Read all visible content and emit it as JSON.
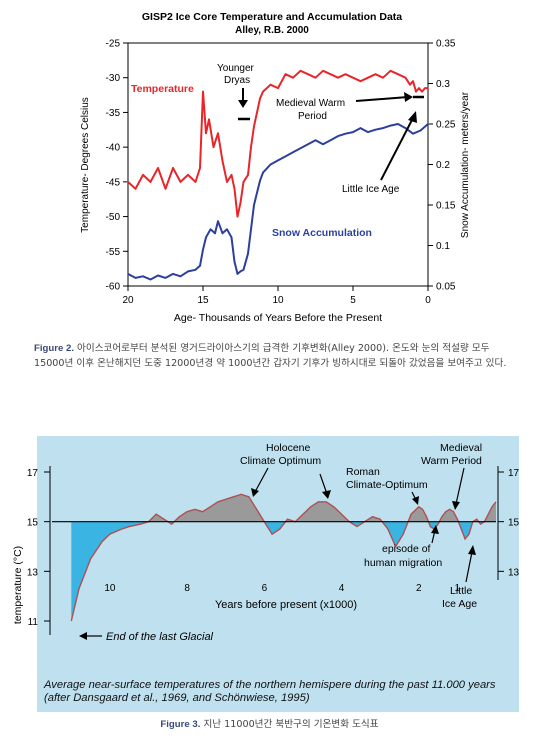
{
  "figure2": {
    "caption_label": "Figure 2.",
    "caption_text": "아이스코어로부터 분석된 영거드라이아스기의 급격한 기후변화(Alley 2000). 온도와 눈의 적설량 모두 15000년 이후 온난해지던 도중 12000년경 약 1000년간 갑자기 기후가 빙하시대로 되돌아 갔었음을 보여주고 있다.",
    "chart_data": {
      "type": "line",
      "title": "GISP2 Ice Core Temperature and Accumulation Data",
      "subtitle": "Alley, R.B. 2000",
      "xlabel": "Age- Thousands of Years Before the Present",
      "ylabel_left": "Temperature- Degrees Celsius",
      "ylabel_right": "Snow Accumulation- meters/year",
      "xlim": [
        20,
        0
      ],
      "ylim_left": [
        -60,
        -25
      ],
      "ylim_right": [
        0.05,
        0.35
      ],
      "x_ticks": [
        "20",
        "15",
        "10",
        "5",
        "0"
      ],
      "y_ticks_left": [
        "-25",
        "-30",
        "-35",
        "-40",
        "-45",
        "-50",
        "-55",
        "-60"
      ],
      "y_ticks_right": [
        "0.35",
        "0.3",
        "0.25",
        "0.2",
        "0.15",
        "0.1",
        "0.05"
      ],
      "series": [
        {
          "name": "Temperature",
          "color": "#e8262a",
          "axis": "left",
          "x": [
            20,
            19.5,
            19,
            18.5,
            18,
            17.5,
            17,
            16.5,
            16,
            15.5,
            15.2,
            15.0,
            14.8,
            14.6,
            14.3,
            14.0,
            13.7,
            13.4,
            13.1,
            12.9,
            12.7,
            12.5,
            12.3,
            12.0,
            11.8,
            11.6,
            11.4,
            11.2,
            11.0,
            10.5,
            10,
            9.5,
            9,
            8.5,
            8,
            7.5,
            7,
            6.5,
            6,
            5.5,
            5,
            4.5,
            4,
            3.5,
            3,
            2.5,
            2,
            1.5,
            1.2,
            1.0,
            0.8,
            0.6,
            0.4,
            0.2,
            0
          ],
          "values": [
            -45,
            -46,
            -44,
            -45,
            -43,
            -46,
            -43,
            -45,
            -44,
            -45,
            -43,
            -32,
            -38,
            -36,
            -40,
            -38,
            -42,
            -45,
            -44,
            -46,
            -50,
            -48,
            -45,
            -44,
            -40,
            -37,
            -35,
            -33,
            -32,
            -31,
            -31.5,
            -29.5,
            -30,
            -29,
            -29.5,
            -30,
            -29,
            -29.5,
            -30,
            -29.5,
            -30,
            -30.5,
            -30,
            -29.5,
            -30,
            -29,
            -29.5,
            -30,
            -31,
            -30.5,
            -32,
            -31.5,
            -32,
            -31.5,
            -31.5
          ]
        },
        {
          "name": "Snow Accumulation",
          "color": "#2d3f9e",
          "axis": "right",
          "x": [
            20,
            19.5,
            19,
            18.5,
            18,
            17.5,
            17,
            16.5,
            16,
            15.5,
            15.2,
            15.0,
            14.8,
            14.5,
            14.2,
            14.0,
            13.7,
            13.4,
            13.1,
            12.9,
            12.7,
            12.5,
            12.3,
            12.0,
            11.8,
            11.6,
            11.4,
            11.2,
            11.0,
            10.5,
            10,
            9.5,
            9,
            8.5,
            8,
            7.5,
            7,
            6.5,
            6,
            5.5,
            5,
            4.5,
            4,
            3.5,
            3,
            2.5,
            2,
            1.5,
            1.0,
            0.5,
            0
          ],
          "values": [
            0.065,
            0.06,
            0.062,
            0.058,
            0.063,
            0.06,
            0.065,
            0.062,
            0.068,
            0.07,
            0.075,
            0.095,
            0.11,
            0.12,
            0.115,
            0.13,
            0.115,
            0.12,
            0.11,
            0.08,
            0.065,
            0.068,
            0.07,
            0.09,
            0.12,
            0.15,
            0.165,
            0.18,
            0.19,
            0.2,
            0.205,
            0.21,
            0.215,
            0.22,
            0.225,
            0.23,
            0.225,
            0.23,
            0.235,
            0.238,
            0.24,
            0.245,
            0.24,
            0.243,
            0.245,
            0.248,
            0.25,
            0.245,
            0.238,
            0.242,
            0.25
          ]
        }
      ],
      "annotations": [
        "Younger Dryas",
        "Medieval Warm Period",
        "Little Ice Age"
      ],
      "series_labels": [
        "Temperature",
        "Snow Accumulation"
      ]
    }
  },
  "figure3": {
    "caption_label": "Figure 3.",
    "caption_text": "지난 11000년간 북반구의 기온변화 도식표",
    "note": "Average near-surface temperatures of the northern hemispere during the past 11.000 years (after Dansgaard et al., 1969, and Schönwiese, 1995)",
    "chart_data": {
      "type": "area",
      "xlabel": "Years before present (x1000)",
      "ylabel": "temperature (°C)",
      "xlim": [
        11.5,
        0
      ],
      "ylim": [
        10.5,
        17.3
      ],
      "baseline": 15,
      "x_ticks": [
        "10",
        "8",
        "6",
        "4",
        "2",
        "1"
      ],
      "y_ticks": [
        "17",
        "15",
        "13",
        "11"
      ],
      "above_color": "#9a9a9a",
      "below_color": "#3ab4e2",
      "line_color": "#b05050",
      "background": "#bfe0ef",
      "x": [
        11,
        10.8,
        10.5,
        10.2,
        10,
        9.7,
        9.5,
        9.2,
        9,
        8.8,
        8.6,
        8.4,
        8.2,
        8.0,
        7.8,
        7.6,
        7.4,
        7.2,
        7.0,
        6.8,
        6.6,
        6.4,
        6.2,
        6.0,
        5.8,
        5.6,
        5.4,
        5.2,
        5.0,
        4.8,
        4.6,
        4.4,
        4.2,
        4.0,
        3.8,
        3.6,
        3.4,
        3.2,
        3.0,
        2.8,
        2.6,
        2.4,
        2.2,
        2.0,
        1.9,
        1.8,
        1.7,
        1.6,
        1.5,
        1.4,
        1.3,
        1.2,
        1.1,
        1.0,
        0.9,
        0.8,
        0.7,
        0.6,
        0.5,
        0.4,
        0.3,
        0.2,
        0.1,
        0
      ],
      "values": [
        11,
        12.3,
        13.5,
        14.2,
        14.5,
        14.7,
        14.8,
        14.9,
        15.0,
        15.3,
        15.1,
        14.9,
        15.2,
        15.4,
        15.5,
        15.4,
        15.6,
        15.8,
        15.9,
        16.0,
        16.1,
        16.0,
        15.5,
        15.0,
        14.5,
        14.7,
        15.1,
        15.0,
        15.3,
        15.6,
        15.8,
        15.8,
        15.6,
        15.3,
        15.0,
        14.8,
        15.0,
        15.2,
        15.1,
        14.7,
        14.0,
        14.5,
        15.3,
        15.6,
        15.5,
        15.2,
        14.8,
        14.7,
        14.9,
        15.2,
        15.4,
        15.5,
        15.4,
        15.1,
        14.7,
        14.3,
        14.5,
        15.0,
        15.1,
        14.9,
        15.0,
        15.3,
        15.6,
        15.8
      ],
      "annotations": [
        "Holocene Climate Optimum",
        "Roman Climate-Optimum",
        "Medieval Warm Period",
        "episode of human migration",
        "Little Ice Age",
        "End of the last Glacial"
      ]
    }
  }
}
